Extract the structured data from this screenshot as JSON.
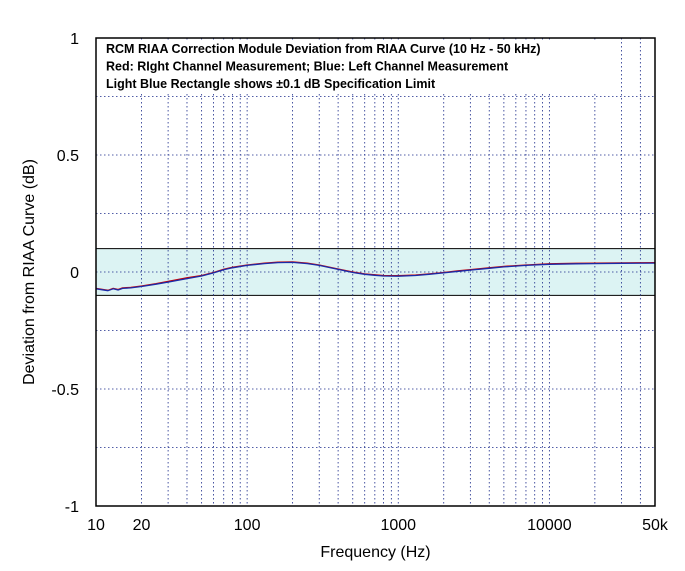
{
  "chart_data": {
    "type": "line",
    "title_lines": [
      "RCM RIAA Correction Module Deviation from RIAA Curve (10 Hz - 50 kHz)",
      "Red: RIght Channel Measurement; Blue: Left Channel Measurement",
      "Light Blue Rectangle shows ±0.1 dB Specification Limit"
    ],
    "xlabel": "Frequency (Hz)",
    "ylabel": "Deviation from RIAA Curve (dB)",
    "x_scale": "log",
    "xlim": [
      10,
      50000
    ],
    "ylim": [
      -1,
      1
    ],
    "x_ticks": [
      {
        "value": 10,
        "label": "10"
      },
      {
        "value": 20,
        "label": "20"
      },
      {
        "value": 100,
        "label": "100"
      },
      {
        "value": 1000,
        "label": "1000"
      },
      {
        "value": 10000,
        "label": "10000"
      },
      {
        "value": 50000,
        "label": "50k"
      }
    ],
    "y_ticks": [
      {
        "value": 1,
        "label": "1"
      },
      {
        "value": 0.5,
        "label": "0.5"
      },
      {
        "value": 0,
        "label": "0"
      },
      {
        "value": -0.5,
        "label": "-0.5"
      },
      {
        "value": -1,
        "label": "-1"
      }
    ],
    "grid": true,
    "spec_band": {
      "low": -0.1,
      "high": 0.1,
      "color": "#dcf3f3"
    },
    "series": [
      {
        "name": "Right Channel",
        "color": "#cc0000",
        "x": [
          10,
          12,
          13,
          14,
          15,
          17,
          20,
          25,
          30,
          40,
          50,
          60,
          70,
          80,
          100,
          130,
          160,
          200,
          250,
          300,
          400,
          500,
          600,
          700,
          800,
          1000,
          1300,
          1600,
          2000,
          2500,
          3000,
          4000,
          5000,
          7000,
          10000,
          15000,
          20000,
          30000,
          50000
        ],
        "y": [
          -0.07,
          -0.078,
          -0.07,
          -0.075,
          -0.068,
          -0.066,
          -0.06,
          -0.05,
          -0.04,
          -0.025,
          -0.015,
          -0.002,
          0.012,
          0.02,
          0.03,
          0.038,
          0.042,
          0.043,
          0.038,
          0.03,
          0.013,
          0.0,
          -0.008,
          -0.012,
          -0.015,
          -0.016,
          -0.013,
          -0.008,
          -0.002,
          0.005,
          0.01,
          0.018,
          0.024,
          0.03,
          0.035,
          0.037,
          0.038,
          0.039,
          0.04
        ]
      },
      {
        "name": "Left Channel",
        "color": "#1a2aa8",
        "x": [
          10,
          12,
          13,
          14,
          15,
          17,
          20,
          25,
          30,
          40,
          50,
          60,
          70,
          80,
          100,
          130,
          160,
          200,
          250,
          300,
          400,
          500,
          600,
          700,
          800,
          1000,
          1300,
          1600,
          2000,
          2500,
          3000,
          4000,
          5000,
          7000,
          10000,
          15000,
          20000,
          30000,
          50000
        ],
        "y": [
          -0.072,
          -0.08,
          -0.072,
          -0.077,
          -0.07,
          -0.068,
          -0.062,
          -0.052,
          -0.043,
          -0.028,
          -0.017,
          -0.004,
          0.01,
          0.018,
          0.028,
          0.036,
          0.04,
          0.041,
          0.036,
          0.028,
          0.011,
          -0.002,
          -0.01,
          -0.014,
          -0.017,
          -0.018,
          -0.015,
          -0.01,
          -0.004,
          0.003,
          0.008,
          0.016,
          0.022,
          0.028,
          0.033,
          0.035,
          0.036,
          0.037,
          0.038
        ]
      }
    ]
  }
}
